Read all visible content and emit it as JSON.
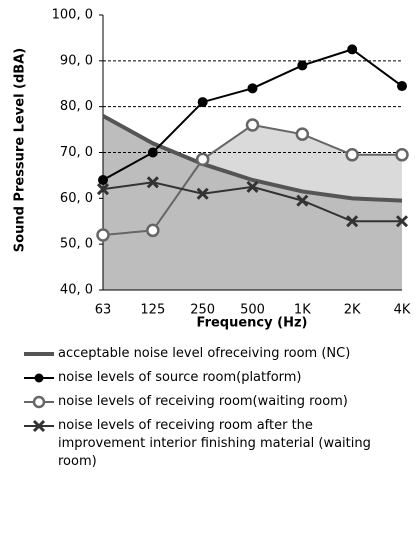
{
  "chart_data": {
    "type": "line",
    "y_label": "Sound Pressure Level (dBA)",
    "x_label": "Frequency (Hz)",
    "categories": [
      "63",
      "125",
      "250",
      "500",
      "1K",
      "2K",
      "4K"
    ],
    "ylim": [
      40,
      100
    ],
    "yticks": [
      {
        "value": 40,
        "label": "40, 0"
      },
      {
        "value": 50,
        "label": "50, 0"
      },
      {
        "value": 60,
        "label": "60, 0"
      },
      {
        "value": 70,
        "label": "70, 0"
      },
      {
        "value": 80,
        "label": "80, 0"
      },
      {
        "value": 90,
        "label": "90, 0"
      },
      {
        "value": 100,
        "label": "100, 0"
      }
    ],
    "grid": true,
    "series": [
      {
        "name": "acceptable noise level ofreceiving room (NC)",
        "color": "#555555",
        "marker": "none",
        "area_color": "#bdbdbd",
        "values": [
          78,
          72,
          67.5,
          64,
          61.5,
          60,
          59.5
        ]
      },
      {
        "name": "noise levels of source room(platform)",
        "color": "#000000",
        "marker": "filled-circle",
        "values": [
          64,
          70,
          81,
          84,
          89,
          92.5,
          84.5
        ]
      },
      {
        "name": "noise levels of receiving room(waiting room)",
        "color": "#666666",
        "marker": "open-circle",
        "area_color": "#dadada",
        "values": [
          52,
          53,
          68.5,
          76,
          74,
          69.5,
          69.5
        ]
      },
      {
        "name": "noise levels of receiving room after the improvement interior finishing material (waiting room)",
        "color": "#333333",
        "marker": "x",
        "values": [
          62,
          63.5,
          61,
          62.5,
          59.5,
          55,
          55
        ]
      }
    ]
  }
}
